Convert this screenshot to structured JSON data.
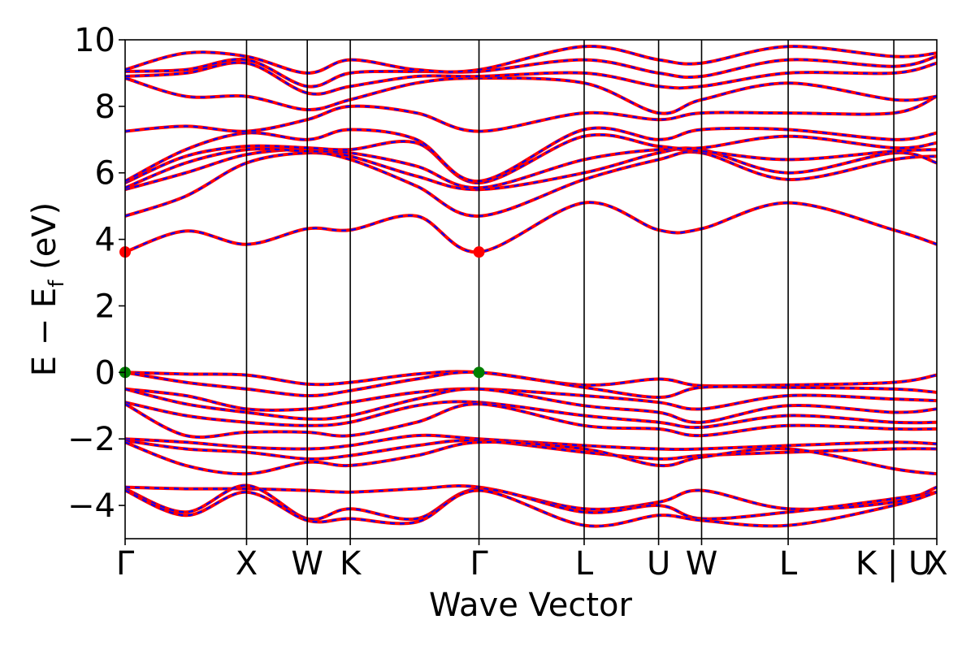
{
  "chart_data": {
    "type": "line",
    "title": "",
    "xlabel": "Wave Vector",
    "ylabel": "E − E",
    "ylabel_subscript": "f",
    "ylabel_unit": "(eV)",
    "ylim": [
      -5,
      10
    ],
    "yticks": [
      -4,
      -2,
      0,
      2,
      4,
      6,
      8,
      10
    ],
    "ytick_labels": [
      "−4",
      "−2",
      "0",
      "2",
      "4",
      "6",
      "8",
      "10"
    ],
    "kpath_labels": [
      "Γ",
      "X",
      "W",
      "K",
      "Γ",
      "L",
      "U",
      "W",
      "L",
      "K | U",
      "X"
    ],
    "kpath_positions": [
      0,
      1.0,
      1.5,
      1.854,
      2.914,
      3.78,
      4.393,
      4.747,
      5.46,
      6.33,
      6.684
    ],
    "xlim": [
      0,
      6.684
    ],
    "colors": {
      "spin_up": "#ff0000",
      "spin_down": "#0000ff",
      "cbm": "#ff0000",
      "vbm": "#008000"
    },
    "extrema": [
      {
        "name": "CBM",
        "color": "red",
        "points": [
          [
            0,
            3.62
          ],
          [
            2.914,
            3.62
          ]
        ]
      },
      {
        "name": "VBM",
        "color": "green",
        "points": [
          [
            0,
            0.0
          ],
          [
            2.914,
            0.0
          ]
        ]
      }
    ],
    "series": [
      {
        "y": [
          3.62,
          4.25,
          3.85,
          4.32,
          4.28,
          4.7,
          3.62,
          5.1,
          4.28,
          4.32,
          5.1,
          4.28,
          3.85
        ]
      },
      {
        "y": [
          4.7,
          5.3,
          6.3,
          6.6,
          6.4,
          5.6,
          4.7,
          5.8,
          6.4,
          6.6,
          5.8,
          6.4,
          6.5
        ]
      },
      {
        "y": [
          5.5,
          6.0,
          6.55,
          6.7,
          6.5,
          5.9,
          5.5,
          6.0,
          6.6,
          6.7,
          6.0,
          6.6,
          6.3
        ]
      },
      {
        "y": [
          5.55,
          6.3,
          6.7,
          6.65,
          6.6,
          6.2,
          5.55,
          6.4,
          6.7,
          6.65,
          6.4,
          6.65,
          6.7
        ]
      },
      {
        "y": [
          5.7,
          6.5,
          6.8,
          6.75,
          6.7,
          6.9,
          5.7,
          7.1,
          6.8,
          6.75,
          7.1,
          6.75,
          6.9
        ]
      },
      {
        "y": [
          5.75,
          6.7,
          7.2,
          7.0,
          7.3,
          7.0,
          5.75,
          7.3,
          7.0,
          7.3,
          7.3,
          7.0,
          7.2
        ]
      },
      {
        "y": [
          7.25,
          7.4,
          7.25,
          7.6,
          8.0,
          7.8,
          7.25,
          7.8,
          7.6,
          7.8,
          7.8,
          7.8,
          8.3
        ]
      },
      {
        "y": [
          8.85,
          8.3,
          8.3,
          7.9,
          8.2,
          8.7,
          8.85,
          8.7,
          7.8,
          8.2,
          8.7,
          8.2,
          8.3
        ]
      },
      {
        "y": [
          8.9,
          9.0,
          9.3,
          8.4,
          8.6,
          8.9,
          8.9,
          9.0,
          8.6,
          8.6,
          9.0,
          9.0,
          9.3
        ]
      },
      {
        "y": [
          9.05,
          9.1,
          9.4,
          8.6,
          9.0,
          9.05,
          9.05,
          9.4,
          9.0,
          8.9,
          9.4,
          9.2,
          9.5
        ]
      },
      {
        "y": [
          9.1,
          9.6,
          9.5,
          9.0,
          9.4,
          9.1,
          9.1,
          9.8,
          9.4,
          9.3,
          9.8,
          9.5,
          9.6
        ]
      },
      {
        "y": [
          0.0,
          -0.05,
          -0.08,
          -0.35,
          -0.3,
          -0.05,
          0.0,
          -0.38,
          -0.2,
          -0.4,
          -0.38,
          -0.3,
          -0.08
        ]
      },
      {
        "y": [
          0.0,
          -0.3,
          -0.5,
          -0.7,
          -0.55,
          -0.2,
          0.0,
          -0.45,
          -0.75,
          -0.45,
          -0.45,
          -0.5,
          -0.6
        ]
      },
      {
        "y": [
          -0.5,
          -0.7,
          -1.1,
          -1.1,
          -0.9,
          -0.6,
          -0.5,
          -0.7,
          -0.9,
          -1.1,
          -0.7,
          -0.8,
          -0.85
        ]
      },
      {
        "y": [
          -0.5,
          -0.95,
          -1.2,
          -1.4,
          -1.3,
          -0.8,
          -0.5,
          -1.0,
          -1.2,
          -1.5,
          -1.0,
          -1.2,
          -1.1
        ]
      },
      {
        "y": [
          -0.9,
          -1.3,
          -1.5,
          -1.6,
          -1.5,
          -1.0,
          -0.9,
          -1.3,
          -1.5,
          -1.65,
          -1.3,
          -1.5,
          -1.5
        ]
      },
      {
        "y": [
          -0.95,
          -1.9,
          -1.8,
          -1.8,
          -1.9,
          -1.5,
          -0.95,
          -1.6,
          -1.7,
          -1.9,
          -1.6,
          -1.7,
          -1.7
        ]
      },
      {
        "y": [
          -2.0,
          -2.1,
          -2.25,
          -2.3,
          -2.2,
          -1.9,
          -2.0,
          -2.2,
          -2.3,
          -2.3,
          -2.2,
          -2.1,
          -2.15
        ]
      },
      {
        "y": [
          -2.05,
          -2.3,
          -2.4,
          -2.6,
          -2.5,
          -2.2,
          -2.05,
          -2.4,
          -2.6,
          -2.5,
          -2.4,
          -2.3,
          -2.3
        ]
      },
      {
        "y": [
          -2.1,
          -2.8,
          -3.05,
          -2.7,
          -2.8,
          -2.5,
          -2.1,
          -2.3,
          -2.8,
          -2.55,
          -2.3,
          -2.9,
          -3.05
        ]
      },
      {
        "y": [
          -3.45,
          -3.5,
          -3.5,
          -3.55,
          -3.6,
          -3.5,
          -3.45,
          -4.1,
          -3.9,
          -3.55,
          -4.1,
          -3.9,
          -3.45
        ]
      },
      {
        "y": [
          -3.5,
          -4.2,
          -3.4,
          -4.4,
          -4.1,
          -4.4,
          -3.5,
          -4.2,
          -4.0,
          -4.4,
          -4.2,
          -3.8,
          -3.6
        ]
      },
      {
        "y": [
          -3.55,
          -4.3,
          -3.6,
          -4.45,
          -4.4,
          -4.5,
          -3.55,
          -4.6,
          -4.3,
          -4.45,
          -4.6,
          -4.0,
          -3.6
        ]
      }
    ],
    "sample_x": [
      0,
      0.5,
      1.0,
      1.5,
      1.854,
      2.4,
      2.914,
      3.78,
      4.393,
      4.747,
      5.46,
      6.33,
      6.684
    ]
  }
}
